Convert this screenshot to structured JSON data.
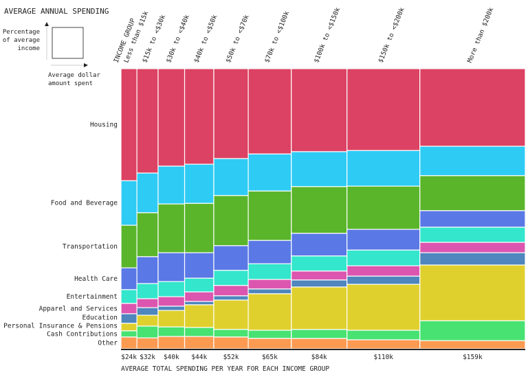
{
  "chart_data": {
    "type": "mekko",
    "title": "AVERAGE ANNUAL SPENDING",
    "legend_key": {
      "y_label": "Percentage of average income",
      "x_label": "Average dollar amount spent"
    },
    "column_header_title": "INCOME GROUP",
    "xlabel": "AVERAGE TOTAL SPENDING PER YEAR FOR EACH INCOME GROUP",
    "categories": [
      "Less than $15k",
      "$15k to <$30k",
      "$30k to <$40k",
      "$40k to <$50k",
      "$50k to <$70k",
      "$70k to <$100k",
      "$100k to <$150k",
      "$150k to <$200k",
      "More than $200k"
    ],
    "avg_spending_k": [
      24,
      32,
      40,
      44,
      52,
      65,
      84,
      110,
      159
    ],
    "avg_spending_labels": [
      "$24k",
      "$32k",
      "$40k",
      "$44k",
      "$52k",
      "$65k",
      "$84k",
      "$110k",
      "$159k"
    ],
    "unit": "percent of spending",
    "series": [
      {
        "name": "Housing",
        "color": "#dc4263",
        "values": [
          40.0,
          37.3,
          34.8,
          34.1,
          32.1,
          30.4,
          29.7,
          29.2,
          27.7
        ]
      },
      {
        "name": "Food and Beverage",
        "color": "#2ecbf5",
        "values": [
          15.9,
          14.2,
          13.5,
          14.0,
          13.2,
          13.2,
          12.5,
          12.7,
          10.5
        ]
      },
      {
        "name": "Transportation",
        "color": "#5ab52b",
        "values": [
          15.2,
          15.7,
          17.4,
          17.6,
          17.9,
          17.6,
          16.7,
          15.4,
          12.5
        ]
      },
      {
        "name": "Health Care",
        "color": "#5a79e6",
        "values": [
          7.8,
          9.6,
          10.3,
          9.1,
          8.8,
          8.3,
          8.1,
          7.4,
          5.9
        ]
      },
      {
        "name": "Entertainment",
        "color": "#33e6cc",
        "values": [
          4.9,
          5.4,
          5.4,
          4.9,
          5.4,
          5.6,
          5.4,
          5.6,
          5.4
        ]
      },
      {
        "name": "Apparel and Services",
        "color": "#dc56b0",
        "values": [
          3.7,
          3.2,
          3.4,
          3.4,
          3.7,
          3.4,
          3.2,
          3.7,
          3.7
        ]
      },
      {
        "name": "Education",
        "color": "#4e86bd",
        "values": [
          3.4,
          2.7,
          1.5,
          1.2,
          1.5,
          1.7,
          2.5,
          2.9,
          4.4
        ]
      },
      {
        "name": "Personal Insurance & Pensions",
        "color": "#e0d02e",
        "values": [
          2.7,
          3.9,
          5.9,
          8.1,
          10.5,
          13.0,
          15.2,
          16.4,
          19.9
        ]
      },
      {
        "name": "Cash Contributions",
        "color": "#48e272",
        "values": [
          2.2,
          4.2,
          3.4,
          3.2,
          2.7,
          2.9,
          3.2,
          3.4,
          7.1
        ]
      },
      {
        "name": "Other",
        "color": "#fd9a52",
        "values": [
          4.2,
          3.9,
          4.4,
          4.4,
          4.2,
          3.7,
          3.7,
          3.2,
          2.9
        ]
      }
    ],
    "ylim": [
      0,
      100
    ]
  }
}
